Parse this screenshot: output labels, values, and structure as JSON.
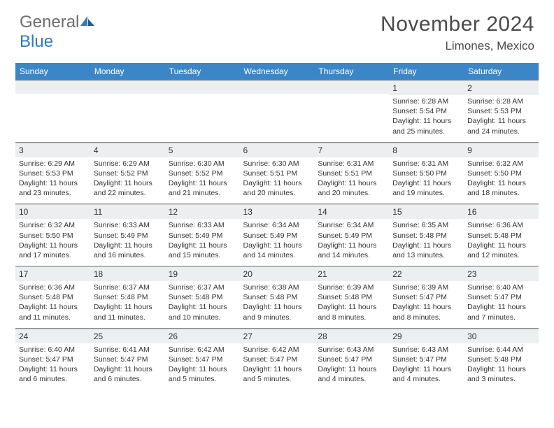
{
  "brand": {
    "part1": "General",
    "part2": "Blue"
  },
  "title": "November 2024",
  "location": "Limones, Mexico",
  "colors": {
    "header_bg": "#3b86c6",
    "header_text": "#ffffff",
    "daynum_bg": "#eceef0",
    "rule": "#8a8a8a",
    "text": "#333333",
    "brand_gray": "#6b6b6b",
    "brand_blue": "#2e7cc0"
  },
  "day_headers": [
    "Sunday",
    "Monday",
    "Tuesday",
    "Wednesday",
    "Thursday",
    "Friday",
    "Saturday"
  ],
  "weeks": [
    [
      {
        "n": "",
        "sr": "",
        "ss": "",
        "dl": ""
      },
      {
        "n": "",
        "sr": "",
        "ss": "",
        "dl": ""
      },
      {
        "n": "",
        "sr": "",
        "ss": "",
        "dl": ""
      },
      {
        "n": "",
        "sr": "",
        "ss": "",
        "dl": ""
      },
      {
        "n": "",
        "sr": "",
        "ss": "",
        "dl": ""
      },
      {
        "n": "1",
        "sr": "Sunrise: 6:28 AM",
        "ss": "Sunset: 5:54 PM",
        "dl": "Daylight: 11 hours and 25 minutes."
      },
      {
        "n": "2",
        "sr": "Sunrise: 6:28 AM",
        "ss": "Sunset: 5:53 PM",
        "dl": "Daylight: 11 hours and 24 minutes."
      }
    ],
    [
      {
        "n": "3",
        "sr": "Sunrise: 6:29 AM",
        "ss": "Sunset: 5:53 PM",
        "dl": "Daylight: 11 hours and 23 minutes."
      },
      {
        "n": "4",
        "sr": "Sunrise: 6:29 AM",
        "ss": "Sunset: 5:52 PM",
        "dl": "Daylight: 11 hours and 22 minutes."
      },
      {
        "n": "5",
        "sr": "Sunrise: 6:30 AM",
        "ss": "Sunset: 5:52 PM",
        "dl": "Daylight: 11 hours and 21 minutes."
      },
      {
        "n": "6",
        "sr": "Sunrise: 6:30 AM",
        "ss": "Sunset: 5:51 PM",
        "dl": "Daylight: 11 hours and 20 minutes."
      },
      {
        "n": "7",
        "sr": "Sunrise: 6:31 AM",
        "ss": "Sunset: 5:51 PM",
        "dl": "Daylight: 11 hours and 20 minutes."
      },
      {
        "n": "8",
        "sr": "Sunrise: 6:31 AM",
        "ss": "Sunset: 5:50 PM",
        "dl": "Daylight: 11 hours and 19 minutes."
      },
      {
        "n": "9",
        "sr": "Sunrise: 6:32 AM",
        "ss": "Sunset: 5:50 PM",
        "dl": "Daylight: 11 hours and 18 minutes."
      }
    ],
    [
      {
        "n": "10",
        "sr": "Sunrise: 6:32 AM",
        "ss": "Sunset: 5:50 PM",
        "dl": "Daylight: 11 hours and 17 minutes."
      },
      {
        "n": "11",
        "sr": "Sunrise: 6:33 AM",
        "ss": "Sunset: 5:49 PM",
        "dl": "Daylight: 11 hours and 16 minutes."
      },
      {
        "n": "12",
        "sr": "Sunrise: 6:33 AM",
        "ss": "Sunset: 5:49 PM",
        "dl": "Daylight: 11 hours and 15 minutes."
      },
      {
        "n": "13",
        "sr": "Sunrise: 6:34 AM",
        "ss": "Sunset: 5:49 PM",
        "dl": "Daylight: 11 hours and 14 minutes."
      },
      {
        "n": "14",
        "sr": "Sunrise: 6:34 AM",
        "ss": "Sunset: 5:49 PM",
        "dl": "Daylight: 11 hours and 14 minutes."
      },
      {
        "n": "15",
        "sr": "Sunrise: 6:35 AM",
        "ss": "Sunset: 5:48 PM",
        "dl": "Daylight: 11 hours and 13 minutes."
      },
      {
        "n": "16",
        "sr": "Sunrise: 6:36 AM",
        "ss": "Sunset: 5:48 PM",
        "dl": "Daylight: 11 hours and 12 minutes."
      }
    ],
    [
      {
        "n": "17",
        "sr": "Sunrise: 6:36 AM",
        "ss": "Sunset: 5:48 PM",
        "dl": "Daylight: 11 hours and 11 minutes."
      },
      {
        "n": "18",
        "sr": "Sunrise: 6:37 AM",
        "ss": "Sunset: 5:48 PM",
        "dl": "Daylight: 11 hours and 11 minutes."
      },
      {
        "n": "19",
        "sr": "Sunrise: 6:37 AM",
        "ss": "Sunset: 5:48 PM",
        "dl": "Daylight: 11 hours and 10 minutes."
      },
      {
        "n": "20",
        "sr": "Sunrise: 6:38 AM",
        "ss": "Sunset: 5:48 PM",
        "dl": "Daylight: 11 hours and 9 minutes."
      },
      {
        "n": "21",
        "sr": "Sunrise: 6:39 AM",
        "ss": "Sunset: 5:48 PM",
        "dl": "Daylight: 11 hours and 8 minutes."
      },
      {
        "n": "22",
        "sr": "Sunrise: 6:39 AM",
        "ss": "Sunset: 5:47 PM",
        "dl": "Daylight: 11 hours and 8 minutes."
      },
      {
        "n": "23",
        "sr": "Sunrise: 6:40 AM",
        "ss": "Sunset: 5:47 PM",
        "dl": "Daylight: 11 hours and 7 minutes."
      }
    ],
    [
      {
        "n": "24",
        "sr": "Sunrise: 6:40 AM",
        "ss": "Sunset: 5:47 PM",
        "dl": "Daylight: 11 hours and 6 minutes."
      },
      {
        "n": "25",
        "sr": "Sunrise: 6:41 AM",
        "ss": "Sunset: 5:47 PM",
        "dl": "Daylight: 11 hours and 6 minutes."
      },
      {
        "n": "26",
        "sr": "Sunrise: 6:42 AM",
        "ss": "Sunset: 5:47 PM",
        "dl": "Daylight: 11 hours and 5 minutes."
      },
      {
        "n": "27",
        "sr": "Sunrise: 6:42 AM",
        "ss": "Sunset: 5:47 PM",
        "dl": "Daylight: 11 hours and 5 minutes."
      },
      {
        "n": "28",
        "sr": "Sunrise: 6:43 AM",
        "ss": "Sunset: 5:47 PM",
        "dl": "Daylight: 11 hours and 4 minutes."
      },
      {
        "n": "29",
        "sr": "Sunrise: 6:43 AM",
        "ss": "Sunset: 5:47 PM",
        "dl": "Daylight: 11 hours and 4 minutes."
      },
      {
        "n": "30",
        "sr": "Sunrise: 6:44 AM",
        "ss": "Sunset: 5:48 PM",
        "dl": "Daylight: 11 hours and 3 minutes."
      }
    ]
  ]
}
